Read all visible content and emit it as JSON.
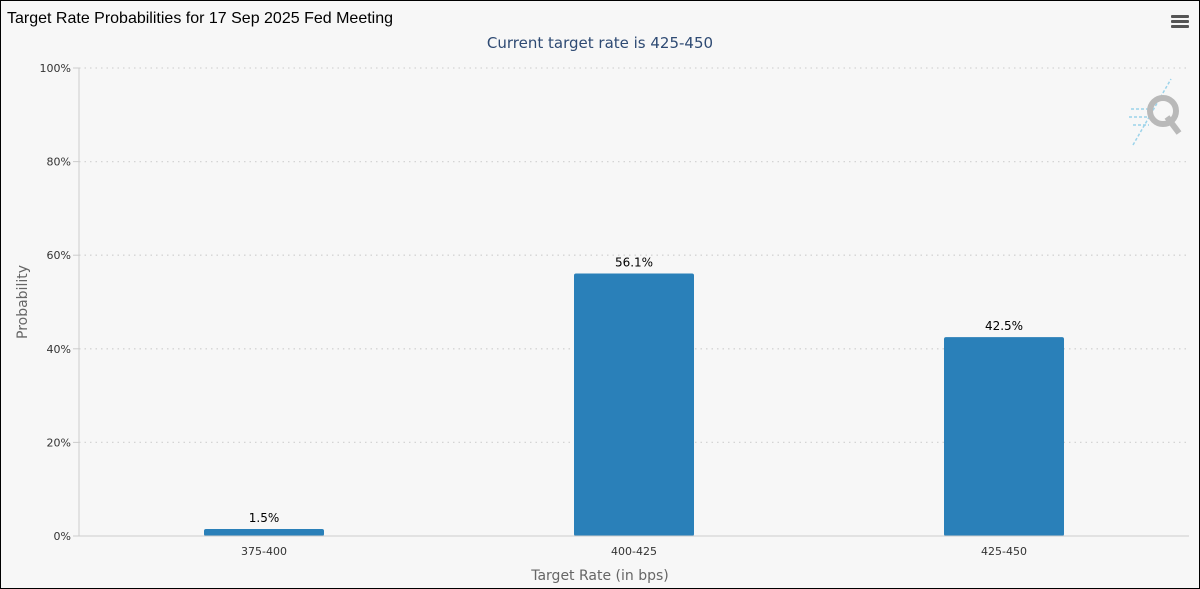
{
  "header": {
    "title": "Target Rate Probabilities for 17 Sep 2025 Fed Meeting"
  },
  "chart_data": {
    "type": "bar",
    "title": "Target Rate Probabilities for 17 Sep 2025 Fed Meeting",
    "subtitle": "Current target rate is 425-450",
    "xlabel": "Target Rate (in bps)",
    "ylabel": "Probability",
    "categories": [
      "375-400",
      "400-425",
      "425-450"
    ],
    "values": [
      1.5,
      56.1,
      42.5
    ],
    "data_labels": [
      "1.5%",
      "56.1%",
      "42.5%"
    ],
    "ylim": [
      0,
      100
    ],
    "yticks": [
      0,
      20,
      40,
      60,
      80,
      100
    ],
    "ytick_labels": [
      "0%",
      "20%",
      "40%",
      "60%",
      "80%",
      "100%"
    ],
    "grid": true,
    "legend": "none",
    "bar_color": "#2a80b9"
  },
  "watermark": {
    "icon": "q-logo-icon"
  }
}
